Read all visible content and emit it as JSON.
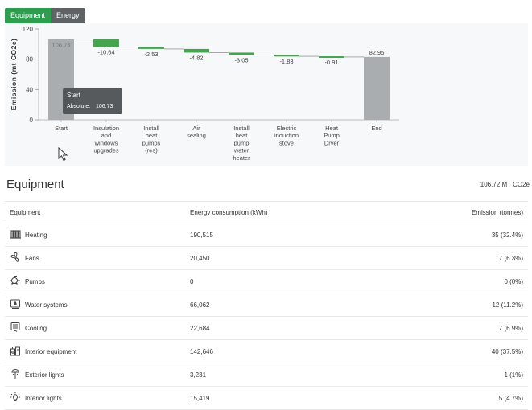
{
  "tabs": [
    {
      "label": "Equipment",
      "active": true
    },
    {
      "label": "Energy",
      "active": false
    }
  ],
  "chart_data": {
    "type": "bar",
    "subtype": "waterfall",
    "ylabel": "Emission (mt CO2e)",
    "ylim": [
      0,
      120
    ],
    "yticks": [
      "0",
      "40",
      "80",
      "120"
    ],
    "categories": [
      {
        "lines": [
          "Start"
        ]
      },
      {
        "lines": [
          "Insulation",
          "and",
          "windows",
          "upgrades"
        ]
      },
      {
        "lines": [
          "Install",
          "heat",
          "pumps",
          "(res)"
        ]
      },
      {
        "lines": [
          "Air",
          "sealing"
        ]
      },
      {
        "lines": [
          "Install",
          "heat",
          "pump",
          "water",
          "heater"
        ]
      },
      {
        "lines": [
          "Electric",
          "induction",
          "stove"
        ]
      },
      {
        "lines": [
          "Heat",
          "Pump",
          "Dryer"
        ]
      },
      {
        "lines": [
          "End"
        ]
      }
    ],
    "bars": [
      {
        "kind": "total",
        "from": 0,
        "to": 106.73,
        "label": "106.73"
      },
      {
        "kind": "delta",
        "from": 106.73,
        "to": 96.09,
        "label": "-10.64"
      },
      {
        "kind": "delta",
        "from": 96.09,
        "to": 93.56,
        "label": "-2.53"
      },
      {
        "kind": "delta",
        "from": 93.56,
        "to": 88.74,
        "label": "-4.82"
      },
      {
        "kind": "delta",
        "from": 88.74,
        "to": 85.69,
        "label": "-3.05"
      },
      {
        "kind": "delta",
        "from": 85.69,
        "to": 83.86,
        "label": "-1.83"
      },
      {
        "kind": "delta",
        "from": 83.86,
        "to": 82.95,
        "label": "-0.91"
      },
      {
        "kind": "total",
        "from": 0,
        "to": 82.95,
        "label": "82.95"
      }
    ],
    "colors": {
      "total": "#a9adb0",
      "delta": "#45a54f",
      "tooltip": "#4d5154"
    },
    "tooltip": {
      "title": "Start",
      "label": "Absolute:",
      "value": "106.73"
    }
  },
  "section": {
    "title": "Equipment",
    "total": "106.72 MT CO2e"
  },
  "table": {
    "headers": {
      "equipment": "Equipment",
      "energy": "Energy consumption (kWh)",
      "emission": "Emission (tonnes)"
    },
    "rows": [
      {
        "icon": "heating-icon",
        "name": "Heating",
        "energy": "190,515",
        "emission": "35 (32.4%)"
      },
      {
        "icon": "fans-icon",
        "name": "Fans",
        "energy": "20,450",
        "emission": "7 (6.3%)"
      },
      {
        "icon": "pumps-icon",
        "name": "Pumps",
        "energy": "0",
        "emission": "0 (0%)"
      },
      {
        "icon": "water-systems-icon",
        "name": "Water systems",
        "energy": "66,062",
        "emission": "12 (11.2%)"
      },
      {
        "icon": "cooling-icon",
        "name": "Cooling",
        "energy": "22,684",
        "emission": "7 (6.9%)"
      },
      {
        "icon": "interior-equipment-icon",
        "name": "Interior equipment",
        "energy": "142,646",
        "emission": "40 (37.5%)"
      },
      {
        "icon": "exterior-lights-icon",
        "name": "Exterior lights",
        "energy": "3,231",
        "emission": "1 (1%)"
      },
      {
        "icon": "interior-lights-icon",
        "name": "Interior lights",
        "energy": "15,419",
        "emission": "5 (4.7%)"
      }
    ]
  }
}
